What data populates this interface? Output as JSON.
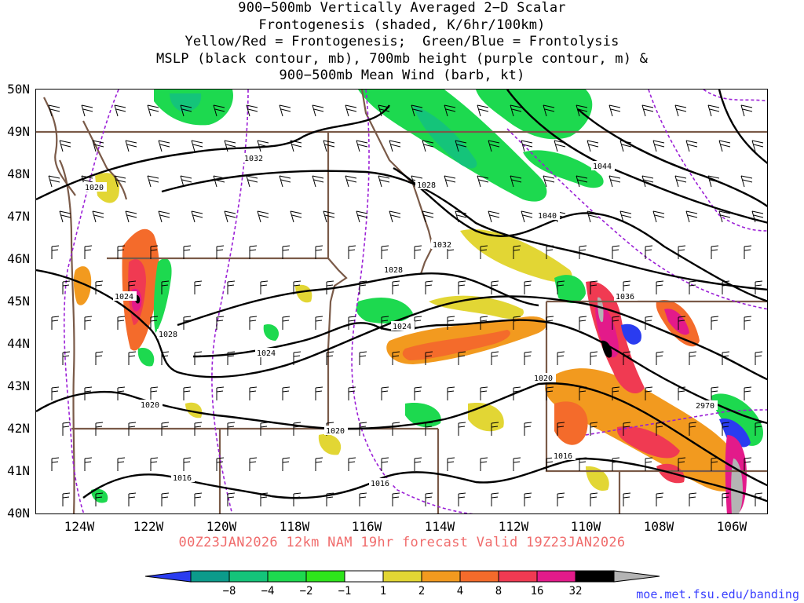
{
  "title_lines": [
    "900−500mb Vertically Averaged 2−D Scalar",
    "Frontogenesis (shaded, K/6hr/100km)",
    "Yellow/Red = Frontogenesis;  Green/Blue = Frontolysis",
    "MSLP (black contour, mb), 700mb height (purple contour, m) &",
    "900−500mb Mean Wind (barb, kt)"
  ],
  "lat_labels": [
    "50N",
    "49N",
    "48N",
    "47N",
    "46N",
    "45N",
    "44N",
    "43N",
    "42N",
    "41N",
    "40N"
  ],
  "lon_labels": [
    "124W",
    "122W",
    "120W",
    "118W",
    "116W",
    "114W",
    "112W",
    "110W",
    "108W",
    "106W"
  ],
  "forecast_line": "00Z23JAN2026 12km NAM 19hr forecast Valid 19Z23JAN2026",
  "colorbar": {
    "labels": [
      "−8",
      "−4",
      "−2",
      "−1",
      "1",
      "2",
      "4",
      "8",
      "16",
      "32"
    ],
    "colors": [
      "#2a3cf0",
      "#0c9b8b",
      "#14c47a",
      "#1dd94f",
      "#2ee51b",
      "#ffffff",
      "#e2d634",
      "#f29a1f",
      "#f46b2b",
      "#f03a52",
      "#e31a8a",
      "#000000",
      "#b4b4b4"
    ]
  },
  "pressure_labels": [
    "1032",
    "1028",
    "1044",
    "1040",
    "1032",
    "1028",
    "1024",
    "1036",
    "1028",
    "1024",
    "1024",
    "1020",
    "1020",
    "1020",
    "1016",
    "1016",
    "1016",
    "1020"
  ],
  "height_labels": [
    "2970"
  ],
  "credit": "moe.met.fsu.edu/banding"
}
